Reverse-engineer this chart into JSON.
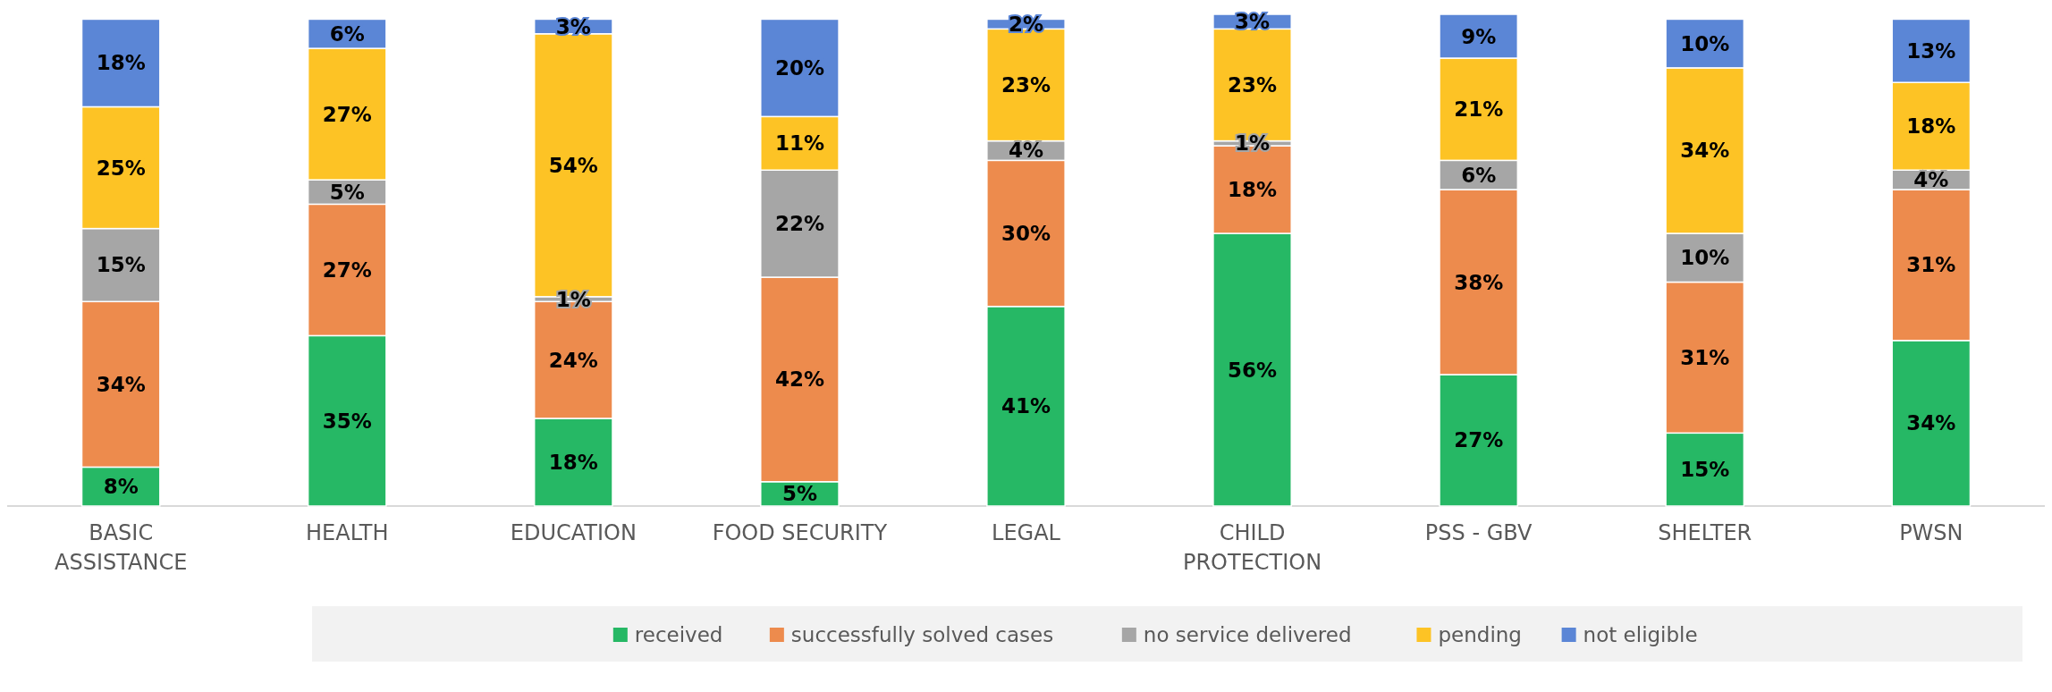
{
  "chart_data": {
    "type": "bar",
    "stacked": true,
    "legend": "bottom",
    "categories": [
      "BASIC ASSISTANCE",
      "HEALTH",
      "EDUCATION",
      "FOOD SECURITY",
      "LEGAL",
      "CHILD PROTECTION",
      "PSS - GBV",
      "SHELTER",
      "PWSN"
    ],
    "series": [
      {
        "name": "received",
        "color": "#26b865",
        "values": [
          8,
          35,
          18,
          5,
          41,
          56,
          27,
          15,
          34
        ],
        "value_labels": [
          "8%",
          "35%",
          "18%",
          "5%",
          "41%",
          "56%",
          "27%",
          "15%",
          "34%"
        ]
      },
      {
        "name": "successfully solved cases",
        "color": "#ed8b4d",
        "values": [
          34,
          27,
          24,
          42,
          30,
          18,
          38,
          31,
          31
        ],
        "value_labels": [
          "34%",
          "27%",
          "24%",
          "42%",
          "30%",
          "18%",
          "38%",
          "31%",
          "31%"
        ]
      },
      {
        "name": "no service delivered",
        "color": "#a6a6a6",
        "values": [
          15,
          5,
          1,
          22,
          4,
          1,
          6,
          10,
          4
        ],
        "value_labels": [
          "15%",
          "5%",
          "1%",
          "22%",
          "4%",
          "1%",
          "6%",
          "10%",
          "4%"
        ]
      },
      {
        "name": "pending",
        "color": "#fdc325",
        "values": [
          25,
          27,
          54,
          11,
          23,
          23,
          21,
          34,
          18
        ],
        "value_labels": [
          "25%",
          "27%",
          "54%",
          "11%",
          "23%",
          "23%",
          "21%",
          "34%",
          "18%"
        ]
      },
      {
        "name": "not eligible",
        "color": "#5b86d6",
        "values": [
          18,
          6,
          3,
          20,
          2,
          3,
          9,
          10,
          13
        ],
        "value_labels": [
          "18%",
          "6%",
          "3%",
          "20%",
          "2%",
          "3%",
          "9%",
          "10%",
          "13%"
        ]
      }
    ]
  }
}
